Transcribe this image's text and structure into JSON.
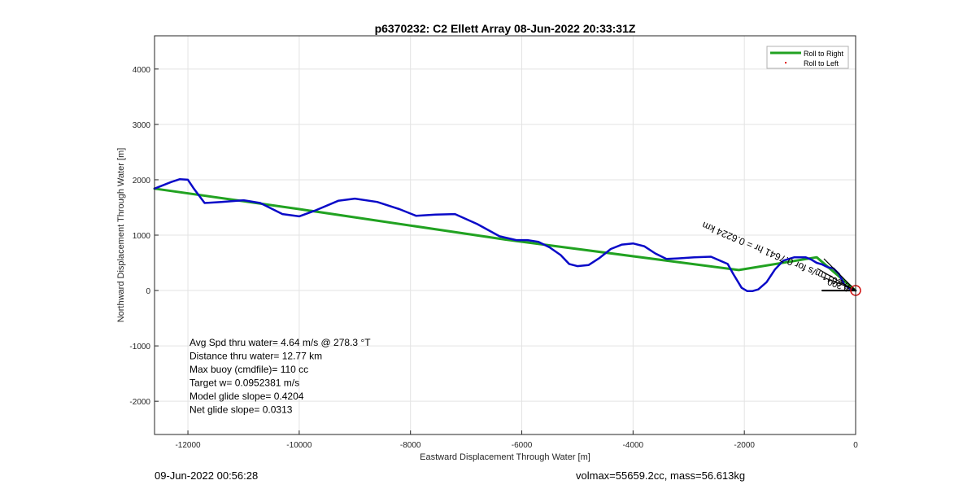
{
  "chart_data": {
    "type": "line",
    "title": "p6370232: C2 Ellett Array 08-Jun-2022 20:33:31Z",
    "xlabel": "Eastward Displacement Through Water [m]",
    "ylabel": "Northward Displacement Through Water [m]",
    "xlim": [
      -12600,
      0
    ],
    "ylim": [
      -2600,
      4600
    ],
    "xticks": [
      -12000,
      -10000,
      -8000,
      -6000,
      -4000,
      -2000,
      0
    ],
    "yticks": [
      -2000,
      -1000,
      0,
      1000,
      2000,
      3000,
      4000
    ],
    "grid": true,
    "legend_position": "top-right",
    "legend": [
      "Roll to Right",
      "Roll to Left"
    ],
    "series": [
      {
        "name": "Roll to Right",
        "color": "#21a221",
        "x": [
          -12600,
          -10000,
          -6300,
          -2100,
          -700,
          0
        ],
        "y": [
          1840,
          1470,
          920,
          370,
          600,
          0
        ]
      },
      {
        "name": "",
        "color": "#0a0ac8",
        "x": [
          -12600,
          -12300,
          -12150,
          -12000,
          -11900,
          -11700,
          -11400,
          -11000,
          -10700,
          -10300,
          -10000,
          -9700,
          -9300,
          -9000,
          -8600,
          -8200,
          -7900,
          -7550,
          -7200,
          -6800,
          -6400,
          -6100,
          -5900,
          -5700,
          -5500,
          -5300,
          -5150,
          -5000,
          -4800,
          -4600,
          -4400,
          -4200,
          -4000,
          -3800,
          -3600,
          -3400,
          -3200,
          -2900,
          -2600,
          -2300,
          -2200,
          -2050,
          -1950,
          -1850,
          -1750,
          -1600,
          -1450,
          -1300,
          -1100,
          -900,
          -800,
          -700,
          -600,
          -500,
          -400,
          -300,
          -200,
          -100,
          0
        ],
        "y": [
          1840,
          1960,
          2010,
          2000,
          1850,
          1580,
          1600,
          1630,
          1580,
          1380,
          1340,
          1450,
          1620,
          1660,
          1600,
          1470,
          1350,
          1370,
          1380,
          1200,
          980,
          910,
          910,
          880,
          780,
          640,
          480,
          440,
          460,
          590,
          750,
          830,
          850,
          800,
          670,
          570,
          580,
          600,
          610,
          480,
          300,
          50,
          -10,
          -10,
          20,
          150,
          380,
          540,
          600,
          600,
          560,
          500,
          470,
          420,
          400,
          300,
          100,
          30,
          0
        ]
      },
      {
        "name": "",
        "color": "#000000",
        "x": [
          -600,
          0
        ],
        "y": [
          0,
          0
        ]
      }
    ],
    "annotations": [
      "Avg Spd thru water=  4.64 m/s @ 278.3 °T",
      "Distance thru water= 12.77 km",
      "Max buoy (cmdfile)= 110 cc",
      "Target w= 0.0952381 m/s",
      "Model glide slope= 0.4204",
      "Net glide slope= 0.0313"
    ],
    "rotated_labels": [
      "0.2611m/s for 0.7641 hr = 0.6224 km",
      "0.200"
    ]
  },
  "footer": {
    "date": "09-Jun-2022 00:56:28",
    "vol": "volmax=55659.2cc, mass=56.613kg"
  }
}
